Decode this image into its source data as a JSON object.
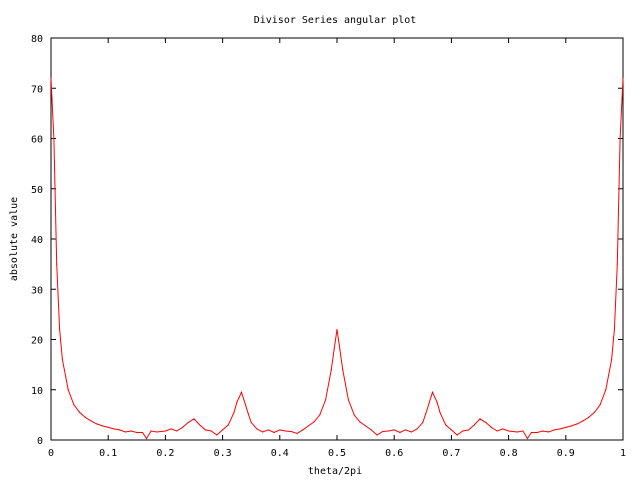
{
  "chart_data": {
    "type": "line",
    "title": "Divisor Series angular plot",
    "xlabel": "theta/2pi",
    "ylabel": "absolute value",
    "xlim": [
      0,
      1
    ],
    "ylim": [
      0,
      80
    ],
    "xticks": [
      "0",
      "0.1",
      "0.2",
      "0.3",
      "0.4",
      "0.5",
      "0.6",
      "0.7",
      "0.8",
      "0.9",
      "1"
    ],
    "yticks": [
      "0",
      "10",
      "20",
      "30",
      "40",
      "50",
      "60",
      "70",
      "80"
    ],
    "grid": false,
    "line_color": "#ff0000",
    "series": [
      {
        "x": [
          0,
          0.005,
          0.01,
          0.015,
          0.02,
          0.03,
          0.04,
          0.05,
          0.06,
          0.07,
          0.08,
          0.09,
          0.1,
          0.11,
          0.12,
          0.13,
          0.14,
          0.15,
          0.16,
          0.167,
          0.175,
          0.185,
          0.2,
          0.21,
          0.22,
          0.23,
          0.24,
          0.25,
          0.26,
          0.27,
          0.28,
          0.29,
          0.3,
          0.31,
          0.32,
          0.325,
          0.333,
          0.34,
          0.345,
          0.35,
          0.36,
          0.37,
          0.38,
          0.39,
          0.4,
          0.41,
          0.42,
          0.43,
          0.44,
          0.45,
          0.46,
          0.47,
          0.48,
          0.49,
          0.495,
          0.5,
          0.505,
          0.51,
          0.52,
          0.53,
          0.54,
          0.55,
          0.56,
          0.57,
          0.58,
          0.59,
          0.6,
          0.61,
          0.62,
          0.63,
          0.64,
          0.65,
          0.655,
          0.667,
          0.675,
          0.68,
          0.69,
          0.7,
          0.71,
          0.72,
          0.73,
          0.74,
          0.75,
          0.76,
          0.77,
          0.78,
          0.79,
          0.8,
          0.815,
          0.825,
          0.833,
          0.84,
          0.85,
          0.86,
          0.87,
          0.88,
          0.89,
          0.9,
          0.91,
          0.92,
          0.93,
          0.94,
          0.95,
          0.96,
          0.97,
          0.98,
          0.985,
          0.99,
          0.995,
          1
        ],
        "y": [
          72,
          60,
          35,
          22,
          16,
          10,
          7,
          5.5,
          4.5,
          3.8,
          3.2,
          2.8,
          2.5,
          2.2,
          2,
          1.6,
          1.8,
          1.5,
          1.5,
          0.3,
          1.8,
          1.6,
          1.8,
          2.2,
          1.8,
          2.5,
          3.5,
          4.2,
          3,
          2,
          1.8,
          1,
          2,
          3,
          5.5,
          7.5,
          9.5,
          7,
          5.2,
          3.5,
          2.2,
          1.6,
          2,
          1.5,
          2,
          1.8,
          1.7,
          1.3,
          2,
          2.8,
          3.6,
          5,
          8,
          14,
          18,
          22,
          18,
          14,
          8,
          5,
          3.6,
          2.8,
          2,
          1,
          1.7,
          1.8,
          2,
          1.5,
          2,
          1.6,
          2.2,
          3.5,
          5.2,
          9.5,
          7.5,
          5.5,
          3,
          2,
          1,
          1.8,
          2,
          3,
          4.2,
          3.5,
          2.5,
          1.8,
          2.2,
          1.8,
          1.6,
          1.8,
          0.3,
          1.5,
          1.5,
          1.8,
          1.6,
          2,
          2.2,
          2.5,
          2.8,
          3.2,
          3.8,
          4.5,
          5.5,
          7,
          10,
          16,
          22,
          35,
          60,
          72
        ]
      }
    ]
  }
}
